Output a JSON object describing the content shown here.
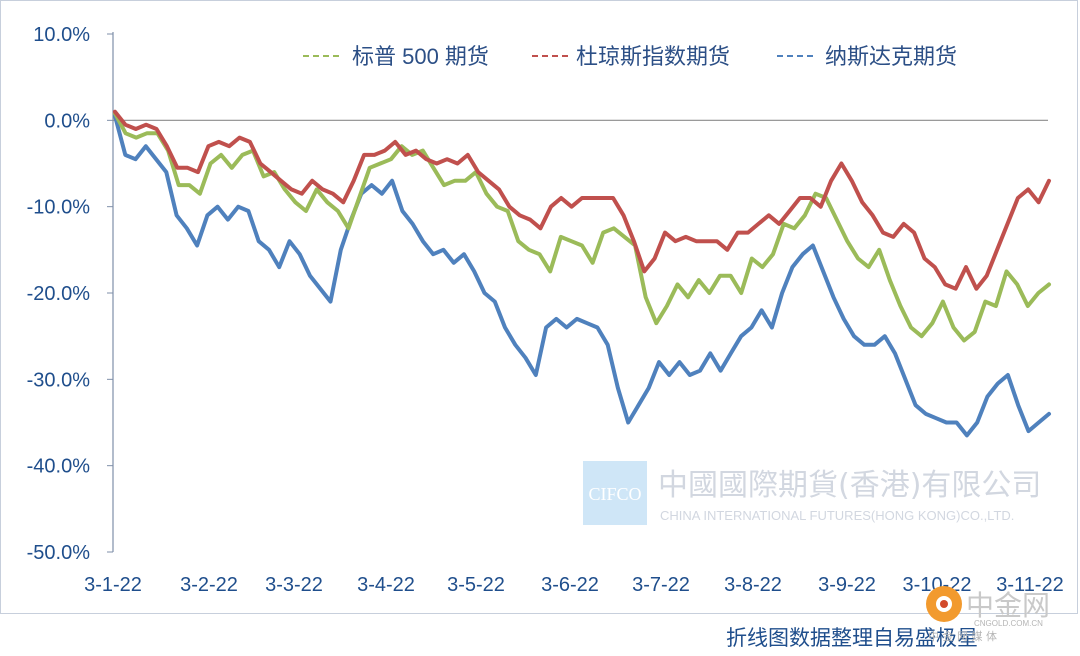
{
  "chart_data": {
    "type": "line",
    "title": "",
    "xlabel": "",
    "ylabel": "",
    "ylim": [
      -50,
      10
    ],
    "y_ticks": [
      "10.0%",
      "0.0%",
      "-10.0%",
      "-20.0%",
      "-30.0%",
      "-40.0%",
      "-50.0%"
    ],
    "x_tick_labels": [
      "3-1-22",
      "3-2-22",
      "3-3-22",
      "3-4-22",
      "3-5-22",
      "3-6-22",
      "3-7-22",
      "3-8-22",
      "3-9-22",
      "3-10-22",
      "3-11-22"
    ],
    "legend_position": "top",
    "series": [
      {
        "name": "标普 500 期货",
        "color": "#9bbb59",
        "values": [
          0.8,
          -1.5,
          -2,
          -1.5,
          -1.5,
          -3.5,
          -7.5,
          -7.5,
          -8.5,
          -5,
          -4,
          -5.5,
          -4,
          -3.5,
          -6.5,
          -6,
          -8,
          -9.5,
          -10.5,
          -8,
          -9.5,
          -10.5,
          -12.5,
          -9,
          -5.5,
          -5,
          -4.5,
          -3,
          -4,
          -3.5,
          -5.5,
          -7.5,
          -7,
          -7,
          -6,
          -8.5,
          -10,
          -10.5,
          -14,
          -15,
          -15.5,
          -17.5,
          -13.5,
          -14,
          -14.5,
          -16.5,
          -13,
          -12.5,
          -13.5,
          -14.5,
          -20.5,
          -23.5,
          -21.5,
          -19,
          -20.5,
          -18.5,
          -20,
          -18,
          -18,
          -20,
          -16,
          -17,
          -15.5,
          -12,
          -12.5,
          -11,
          -8.5,
          -9,
          -11.5,
          -14,
          -16,
          -17,
          -15,
          -18.5,
          -21.5,
          -24,
          -25,
          -23.5,
          -21,
          -24,
          -25.5,
          -24.5,
          -21,
          -21.5,
          -17.5,
          -19,
          -21.5,
          -20,
          -19
        ]
      },
      {
        "name": "杜琼斯指数期货",
        "color": "#c0504d",
        "values": [
          1,
          -0.5,
          -1,
          -0.5,
          -1,
          -3,
          -5.5,
          -5.5,
          -6,
          -3,
          -2.5,
          -3,
          -2,
          -2.5,
          -5,
          -6,
          -7,
          -8,
          -8.5,
          -7,
          -8,
          -8.5,
          -9.5,
          -7,
          -4,
          -4,
          -3.5,
          -2.5,
          -4,
          -3.5,
          -4.5,
          -5,
          -4.5,
          -5,
          -4,
          -6,
          -7,
          -8,
          -10,
          -11,
          -11.5,
          -12.5,
          -10,
          -9,
          -10,
          -9,
          -9,
          -9,
          -9,
          -11,
          -14,
          -17.5,
          -16,
          -13,
          -14,
          -13.5,
          -14,
          -14,
          -14,
          -15,
          -13,
          -13,
          -12,
          -11,
          -12,
          -10.5,
          -9,
          -9,
          -10,
          -7,
          -5,
          -7,
          -9.5,
          -11,
          -13,
          -13.5,
          -12,
          -13,
          -16,
          -17,
          -19,
          -19.5,
          -17,
          -19.5,
          -18,
          -15,
          -12,
          -9,
          -8,
          -9.5,
          -7
        ]
      },
      {
        "name": "纳斯达克期货",
        "color": "#4f81bd",
        "values": [
          0.5,
          -4,
          -4.5,
          -3,
          -4.5,
          -6,
          -11,
          -12.5,
          -14.5,
          -11,
          -10,
          -11.5,
          -10,
          -10.5,
          -14,
          -15,
          -17,
          -14,
          -15.5,
          -18,
          -19.5,
          -21,
          -15,
          -11.5,
          -8.5,
          -7.5,
          -8.5,
          -7,
          -10.5,
          -12,
          -14,
          -15.5,
          -15,
          -16.5,
          -15.5,
          -17.5,
          -20,
          -21,
          -24,
          -26,
          -27.5,
          -29.5,
          -24,
          -23,
          -24,
          -23,
          -23.5,
          -24,
          -26,
          -31,
          -35,
          -33,
          -31,
          -28,
          -29.5,
          -28,
          -29.5,
          -29,
          -27,
          -29,
          -27,
          -25,
          -24,
          -22,
          -24,
          -20,
          -17,
          -15.5,
          -14.5,
          -17.5,
          -20.5,
          -23,
          -25,
          -26,
          -26,
          -25,
          -27,
          -30,
          -33,
          -34,
          -34.5,
          -35,
          -35,
          -36.5,
          -35,
          -32,
          -30.5,
          -29.5,
          -33,
          -36,
          -35,
          -34
        ]
      }
    ]
  },
  "watermark": {
    "box_text": "CIFCO",
    "company_cn": "中國國際期貨(香港)有限公司",
    "company_en": "CHINA INTERNATIONAL FUTURES(HONG KONG)CO.,LTD."
  },
  "footer": {
    "caption": "折线图数据整理自易盛极星"
  },
  "site_logo": {
    "name": "中金网",
    "domain": "CNGOLD.COM.CN",
    "tagline": "中 金 网 媒 体"
  }
}
